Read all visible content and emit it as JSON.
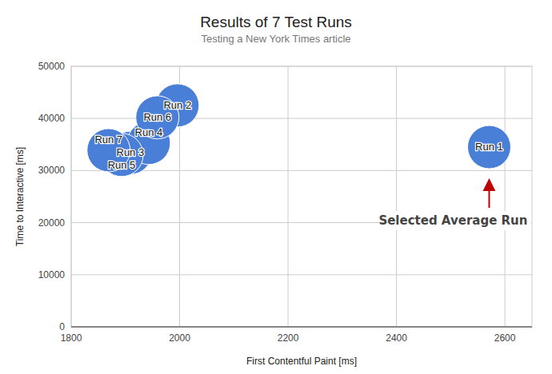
{
  "chart_data": {
    "type": "scatter",
    "title": "Results of 7 Test Runs",
    "subtitle": "Testing a New York Times article",
    "x_label": "First Contentful Paint [ms]",
    "y_label": "Time to Interactive [ms]",
    "x": [
      2571,
      1996,
      1909,
      1943,
      1893,
      1959,
      1869
    ],
    "values": [
      34500,
      42500,
      33400,
      35300,
      33000,
      40200,
      33900
    ],
    "labels": [
      "Run 1",
      "Run 2",
      "Run 3",
      "Run 4",
      "Run 5",
      "Run 6",
      "Run 7"
    ],
    "color": "#4a7fd8",
    "marker": "circle",
    "annotation": "Selected Average Run",
    "xlim": [
      1800,
      2650
    ],
    "xticks": [
      1800,
      2000,
      2200,
      2400,
      2600
    ],
    "ylim": [
      0,
      50000
    ],
    "yticks": [
      0,
      10000,
      20000,
      30000,
      40000,
      50000
    ],
    "grid": true
  }
}
